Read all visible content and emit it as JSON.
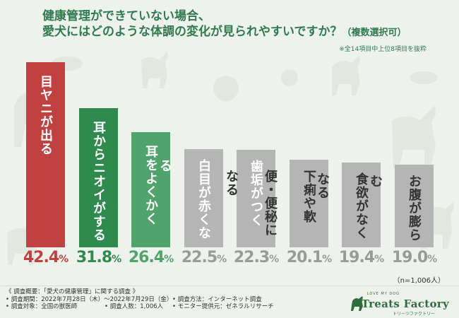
{
  "title": {
    "line1": "健康管理ができていない場合、",
    "line2_main": "愛犬にはどのような体調の変化が見られやすいですか？",
    "line2_suffix": "（複数選択可）"
  },
  "footnote": "※全14項目中上位8項目を抜粋",
  "n_note": "（n=1,006人）",
  "chart_data": {
    "type": "bar",
    "title": "健康管理ができていない場合、愛犬にはどのような体調の変化が見られやすいですか？（複数選択可）",
    "categories": [
      "目ヤニが出る",
      "耳からニオイがする",
      "耳をよくかく",
      "白目が赤くなる",
      "歯垢がつく",
      "下痢や軟便・便秘になる",
      "食欲がなくなる",
      "お腹が膨らむ"
    ],
    "values": [
      42.4,
      31.8,
      26.4,
      22.5,
      22.3,
      20.1,
      19.4,
      19.0
    ],
    "value_labels": [
      {
        "num": "42.4",
        "unit": "%"
      },
      {
        "num": "31.8",
        "unit": "%"
      },
      {
        "num": "26.4",
        "unit": "%"
      },
      {
        "num": "22.5",
        "unit": "%"
      },
      {
        "num": "22.3",
        "unit": "%"
      },
      {
        "num": "20.1",
        "unit": "%"
      },
      {
        "num": "19.4",
        "unit": "%"
      },
      {
        "num": "19.0",
        "unit": "%"
      }
    ],
    "ylim": [
      0,
      42.4
    ],
    "grid": false,
    "legend": "none"
  },
  "colors": {
    "bar": [
      "#c0413f",
      "#2f8a4e",
      "#4fa36b",
      "#b5b5b5",
      "#b5b5b5",
      "#b5b5b5",
      "#b5b5b5",
      "#b5b5b5"
    ],
    "pct": [
      "#c0413f",
      "#2f8a4e",
      "#4fa36b",
      "#9a9a9a",
      "#9a9a9a",
      "#9a9a9a",
      "#9a9a9a",
      "#9a9a9a"
    ],
    "label": [
      "#ffffff",
      "#ffffff",
      "#ffffff",
      "#ffffff",
      "#ffffff",
      "#333333",
      "#333333",
      "#333333"
    ]
  },
  "survey": {
    "heading": "《 調査概要：「愛犬の健康管理」に関する調査 》",
    "period": "• 調査期間：2022年7月28日（木）～2022年7月29日（金）",
    "method": "• 調査方法：インターネット調査",
    "target": "• 調査対象：全国の獣医師",
    "count": "• 調査人数：1,006人",
    "provider": "• モニター提供元：ゼネラルリサーチ"
  },
  "logo": {
    "tagline": "LOVE MY DOG",
    "brand": "Treats Factory",
    "sub": "トリーツファクトリー",
    "icon": "dog-silhouette-icon"
  }
}
